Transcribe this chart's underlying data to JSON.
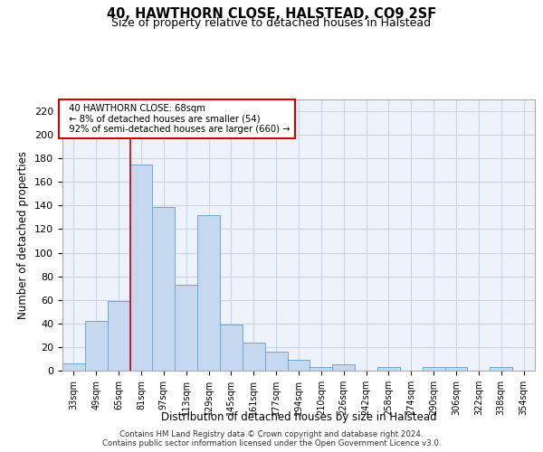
{
  "title": "40, HAWTHORN CLOSE, HALSTEAD, CO9 2SF",
  "subtitle": "Size of property relative to detached houses in Halstead",
  "xlabel": "Distribution of detached houses by size in Halstead",
  "ylabel": "Number of detached properties",
  "bin_labels": [
    "33sqm",
    "49sqm",
    "65sqm",
    "81sqm",
    "97sqm",
    "113sqm",
    "129sqm",
    "145sqm",
    "161sqm",
    "177sqm",
    "194sqm",
    "210sqm",
    "226sqm",
    "242sqm",
    "258sqm",
    "274sqm",
    "290sqm",
    "306sqm",
    "322sqm",
    "338sqm",
    "354sqm"
  ],
  "bar_heights": [
    6,
    42,
    59,
    175,
    139,
    73,
    132,
    39,
    24,
    16,
    9,
    3,
    5,
    0,
    3,
    0,
    3,
    3,
    0,
    3,
    0
  ],
  "bar_color": "#c5d8f0",
  "bar_edge_color": "#6aaad4",
  "red_line_x": 2.5,
  "annotation_text_line1": "40 HAWTHORN CLOSE: 68sqm",
  "annotation_text_line2": "← 8% of detached houses are smaller (54)",
  "annotation_text_line3": "92% of semi-detached houses are larger (660) →",
  "annotation_box_color": "#ffffff",
  "annotation_box_edge": "#cc0000",
  "red_line_color": "#cc0000",
  "grid_color": "#c8d4e8",
  "background_color": "#eef2fb",
  "ylim_max": 230,
  "yticks": [
    0,
    20,
    40,
    60,
    80,
    100,
    120,
    140,
    160,
    180,
    200,
    220
  ],
  "footer_line1": "Contains HM Land Registry data © Crown copyright and database right 2024.",
  "footer_line2": "Contains public sector information licensed under the Open Government Licence v3.0."
}
